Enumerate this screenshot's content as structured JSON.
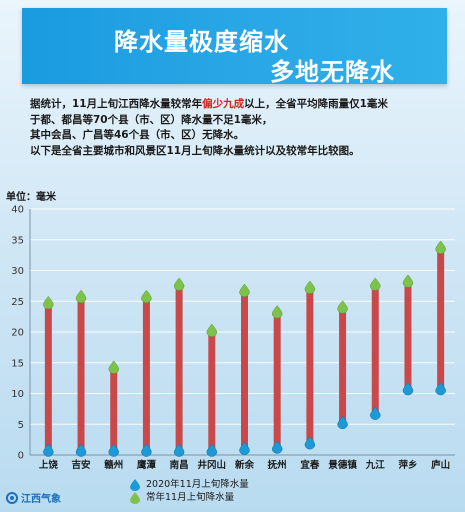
{
  "header": {
    "title_line1": "降水量极度缩水",
    "title_line2": "多地无降水"
  },
  "intro": {
    "line1_a": "据统计，11月上旬江西降水量较常年",
    "line1_hl": "偏少九成",
    "line1_b": "以上，全省平均降雨量仅1毫米",
    "line2": "于都、都昌等70个县（市、区）降水量不足1毫米，",
    "line3": "其中会昌、广昌等46个县（市、区）无降水。",
    "line4": "以下是全省主要城市和风景区11月上旬降水量统计以及较常年比较图。"
  },
  "colors": {
    "bar": "#c9494b",
    "current_marker": "#1b9ad6",
    "normal_marker": "#7cc24b",
    "highlight": "#d8231f",
    "banner": "#2aa7e6"
  },
  "chart_data": {
    "type": "bar",
    "ylabel": "单位：毫米",
    "ylim": [
      0,
      40
    ],
    "yticks": [
      0,
      5,
      10,
      15,
      20,
      25,
      30,
      35,
      40
    ],
    "grid": true,
    "categories": [
      "上饶",
      "吉安",
      "赣州",
      "鹰潭",
      "南昌",
      "井冈山",
      "新余",
      "抚州",
      "宜春",
      "景德镇",
      "九江",
      "萍乡",
      "庐山"
    ],
    "series": [
      {
        "name": "2020年11月上旬降水量",
        "marker": "blue-drop",
        "values": [
          0.5,
          0.5,
          0.5,
          0.5,
          0.5,
          0.5,
          0.8,
          1.0,
          1.7,
          5.0,
          6.5,
          10.5,
          10.5
        ]
      },
      {
        "name": "常年11月上旬降水量",
        "marker": "green-drop",
        "values": [
          24.5,
          25.5,
          14.0,
          25.5,
          27.5,
          20.0,
          26.5,
          23.0,
          27.0,
          23.8,
          27.5,
          28.0,
          33.5
        ]
      }
    ]
  },
  "legend": {
    "current": "2020年11月上旬降水量",
    "normal": "常年11月上旬降水量"
  },
  "logo": {
    "name": "江西气象"
  }
}
